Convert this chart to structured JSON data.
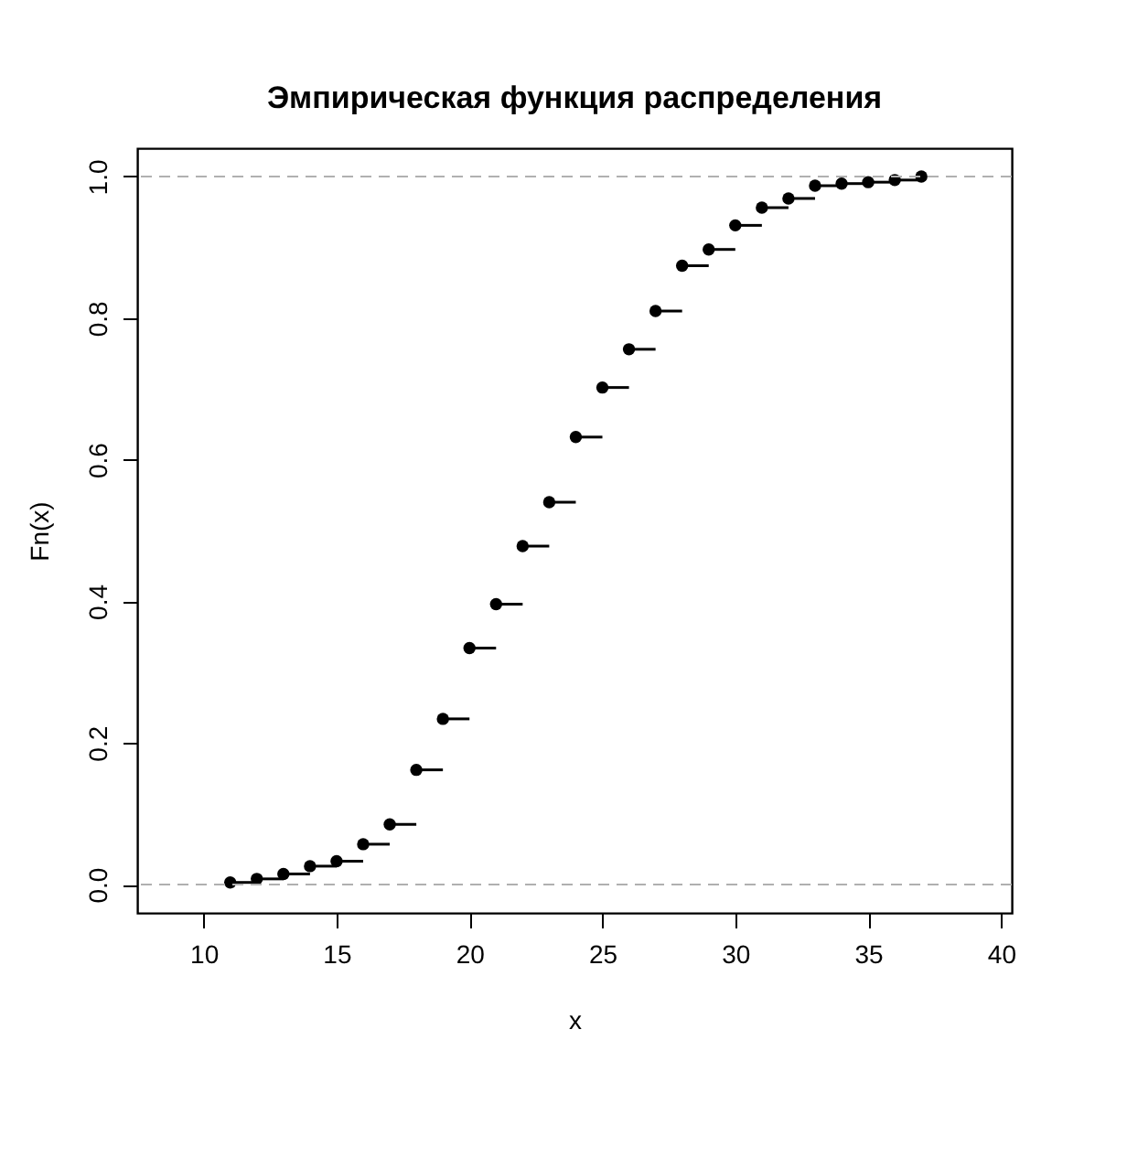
{
  "chart_data": {
    "type": "step",
    "title": "Эмпирическая функция распределения",
    "xlabel": "x",
    "ylabel": "Fn(x)",
    "x": [
      11,
      12,
      13,
      14,
      15,
      16,
      17,
      18,
      19,
      20,
      21,
      22,
      23,
      24,
      25,
      26,
      27,
      28,
      29,
      30,
      31,
      32,
      33,
      34,
      35,
      36,
      37
    ],
    "series": [
      {
        "color": "#000000",
        "values": [
          0.003,
          0.008,
          0.015,
          0.026,
          0.033,
          0.057,
          0.085,
          0.162,
          0.234,
          0.334,
          0.396,
          0.478,
          0.54,
          0.632,
          0.702,
          0.756,
          0.81,
          0.874,
          0.897,
          0.931,
          0.956,
          0.969,
          0.987,
          0.99,
          0.992,
          0.995,
          1.0
        ]
      }
    ],
    "marker": "circle",
    "xlim": [
      7.5,
      40.4
    ],
    "xticks": [
      10,
      15,
      20,
      25,
      30,
      35,
      40
    ],
    "ylim": [
      -0.04,
      1.04
    ],
    "yticks": [
      {
        "value": 0,
        "label": "0.0"
      },
      {
        "value": 0.2,
        "label": "0.2"
      },
      {
        "value": 0.4,
        "label": "0.4"
      },
      {
        "value": 0.6,
        "label": "0.6"
      },
      {
        "value": 0.8,
        "label": "0.8"
      },
      {
        "value": 1,
        "label": "1.0"
      }
    ],
    "ref_lines": [
      {
        "axis": "y",
        "value": 0,
        "color": "#b0b0b0",
        "line_style": "dashed"
      },
      {
        "axis": "y",
        "value": 1,
        "color": "#b0b0b0",
        "line_style": "dashed"
      }
    ],
    "grid": false
  }
}
